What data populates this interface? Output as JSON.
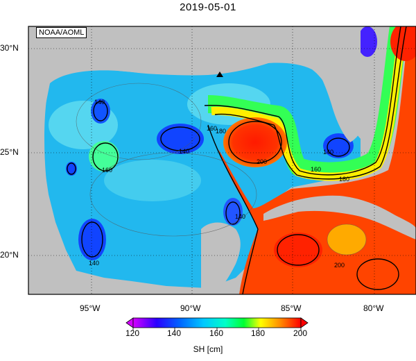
{
  "title": "2019-05-01",
  "credit": "NOAA/AOML",
  "lat_labels": [
    "30°N",
    "25°N",
    "20°N"
  ],
  "lon_labels": [
    "95°W",
    "90°W",
    "85°W",
    "80°W"
  ],
  "contour_labels": [
    "140",
    "140",
    "140",
    "140",
    "140",
    "160",
    "160",
    "160",
    "180",
    "180",
    "200",
    "200"
  ],
  "colorbar": {
    "ticks": [
      "120",
      "140",
      "160",
      "180",
      "200"
    ],
    "title": "SH [cm]",
    "colors": [
      "#d400ff",
      "#2a00ff",
      "#00aaff",
      "#00ffcc",
      "#00ff00",
      "#ffff00",
      "#ff8800",
      "#ff0000"
    ]
  },
  "land_color": "#c0c0c0",
  "marker": "triangle-marker"
}
